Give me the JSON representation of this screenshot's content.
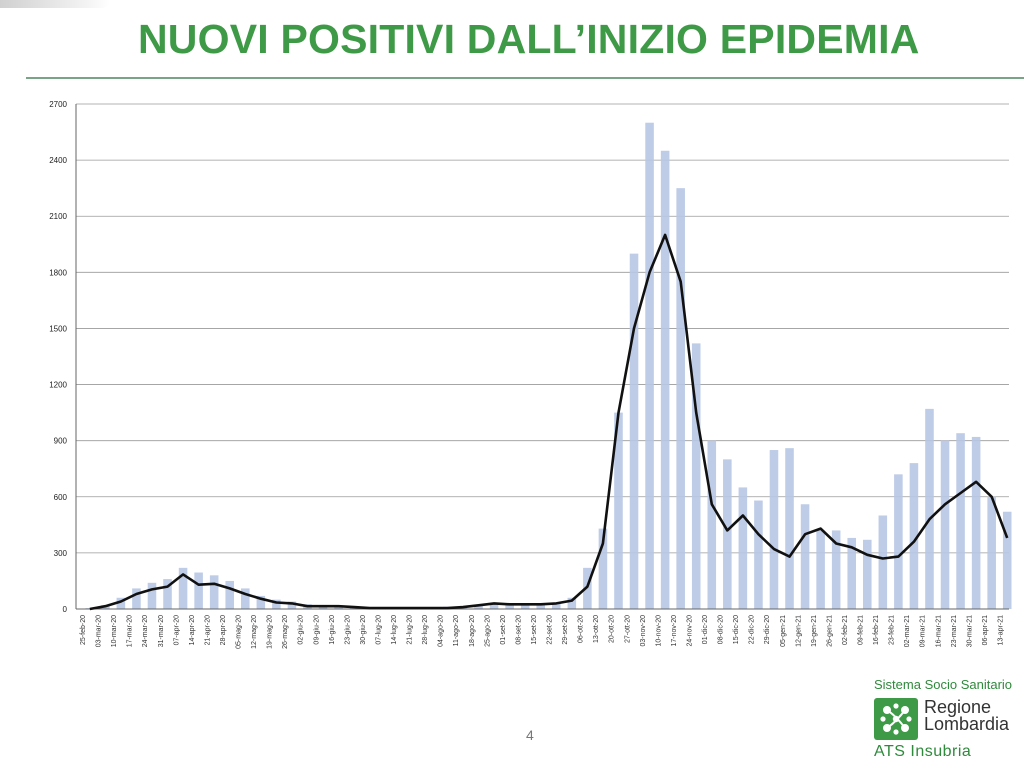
{
  "slide": {
    "title": "NUOVI POSITIVI DALL’INIZIO EPIDEMIA",
    "page_number": "4"
  },
  "logo": {
    "system_line": "Sistema Socio Sanitario",
    "region_line1": "Regione",
    "region_line2": "Lombardia",
    "agency": "ATS Insubria",
    "emblem_icon": "rosa-camuna-icon"
  },
  "colors": {
    "title": "#3e9a46",
    "bars": "#b7c6e4",
    "line": "#111111",
    "grid": "#9a9a9a"
  },
  "chart_data": {
    "type": "bar",
    "title": "",
    "xlabel": "",
    "ylabel": "",
    "ylim": [
      0,
      2700
    ],
    "yticks": [
      0,
      300,
      600,
      900,
      1200,
      1500,
      1800,
      2100,
      2400,
      2700
    ],
    "grid": "horizontal",
    "xticks": [
      "25-feb-20",
      "03-mar-20",
      "10-mar-20",
      "17-mar-20",
      "24-mar-20",
      "31-mar-20",
      "07-apr-20",
      "14-apr-20",
      "21-apr-20",
      "28-apr-20",
      "05-mag-20",
      "12-mag-20",
      "19-mag-20",
      "26-mag-20",
      "02-giu-20",
      "09-giu-20",
      "16-giu-20",
      "23-giu-20",
      "30-giu-20",
      "07-lug-20",
      "14-lug-20",
      "21-lug-20",
      "28-lug-20",
      "04-ago-20",
      "11-ago-20",
      "18-ago-20",
      "25-ago-20",
      "01-set-20",
      "08-set-20",
      "15-set-20",
      "22-set-20",
      "29-set-20",
      "06-ott-20",
      "13-ott-20",
      "20-ott-20",
      "27-ott-20",
      "03-nov-20",
      "10-nov-20",
      "17-nov-20",
      "24-nov-20",
      "01-dic-20",
      "08-dic-20",
      "15-dic-20",
      "22-dic-20",
      "29-dic-20",
      "05-gen-21",
      "12-gen-21",
      "19-gen-21",
      "26-gen-21",
      "02-feb-21",
      "09-feb-21",
      "16-feb-21",
      "23-feb-21",
      "02-mar-21",
      "09-mar-21",
      "16-mar-21",
      "23-mar-21",
      "30-mar-21",
      "06-apr-21",
      "13-apr-21"
    ],
    "daily_series_weekly_peaks": [
      5,
      20,
      60,
      110,
      140,
      160,
      220,
      195,
      180,
      150,
      110,
      70,
      50,
      40,
      25,
      20,
      18,
      12,
      10,
      8,
      8,
      8,
      10,
      12,
      14,
      20,
      30,
      30,
      28,
      30,
      35,
      60,
      220,
      430,
      1050,
      1900,
      2600,
      2450,
      2250,
      1420,
      900,
      800,
      650,
      580,
      850,
      860,
      560,
      420,
      420,
      380,
      370,
      500,
      720,
      780,
      1070,
      900,
      940,
      920,
      600,
      520
    ],
    "series": [
      {
        "name": "",
        "type": "line",
        "values": [
          0,
          15,
          40,
          80,
          105,
          120,
          185,
          130,
          135,
          110,
          80,
          55,
          35,
          30,
          15,
          15,
          15,
          10,
          5,
          5,
          5,
          5,
          5,
          5,
          10,
          20,
          30,
          25,
          25,
          25,
          30,
          45,
          120,
          350,
          1050,
          1500,
          1800,
          2000,
          1750,
          1050,
          560,
          420,
          500,
          400,
          320,
          280,
          400,
          430,
          350,
          330,
          290,
          270,
          280,
          360,
          480,
          560,
          620,
          680,
          600,
          380
        ]
      }
    ]
  }
}
